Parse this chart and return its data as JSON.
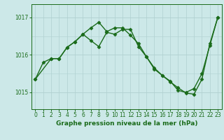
{
  "title": "Graphe pression niveau de la mer (hPa)",
  "background_color": "#cce8e8",
  "grid_color": "#b0d0d0",
  "line_color": "#1a6b1a",
  "x_ticks": [
    0,
    1,
    2,
    3,
    4,
    5,
    6,
    7,
    8,
    9,
    10,
    11,
    12,
    13,
    14,
    15,
    16,
    17,
    18,
    19,
    20,
    21,
    22,
    23
  ],
  "y_ticks": [
    1015,
    1016,
    1017
  ],
  "ylim": [
    1014.55,
    1017.35
  ],
  "xlim": [
    -0.5,
    23.5
  ],
  "line1_x": [
    0,
    1,
    2,
    3,
    4,
    5,
    6,
    7,
    8,
    9,
    10,
    11,
    12,
    13,
    14,
    15,
    16,
    17,
    18,
    19,
    20,
    21,
    22,
    23
  ],
  "line1_y": [
    1015.35,
    1015.8,
    1015.9,
    1015.9,
    1016.2,
    1016.35,
    1016.55,
    1016.72,
    1016.87,
    1016.62,
    1016.72,
    1016.72,
    1016.52,
    1016.3,
    1015.95,
    1015.65,
    1015.45,
    1015.3,
    1015.05,
    1015.0,
    1015.1,
    1015.5,
    1016.25,
    1017.0
  ],
  "line2_x": [
    0,
    2,
    3,
    4,
    5,
    6,
    7,
    8,
    9,
    10,
    11,
    12,
    13,
    14,
    15,
    16,
    17,
    18,
    19,
    20,
    21,
    22,
    23
  ],
  "line2_y": [
    1015.35,
    1015.9,
    1015.9,
    1016.2,
    1016.35,
    1016.55,
    1016.38,
    1016.22,
    1016.6,
    1016.55,
    1016.68,
    1016.68,
    1016.22,
    1015.95,
    1015.62,
    1015.45,
    1015.28,
    1015.12,
    1014.98,
    1014.95,
    1015.35,
    1016.3,
    1017.0
  ],
  "marker": "D",
  "markersize": 2.5,
  "linewidth": 1.0,
  "tick_labelsize": 5.5,
  "xlabel_fontsize": 6.5
}
